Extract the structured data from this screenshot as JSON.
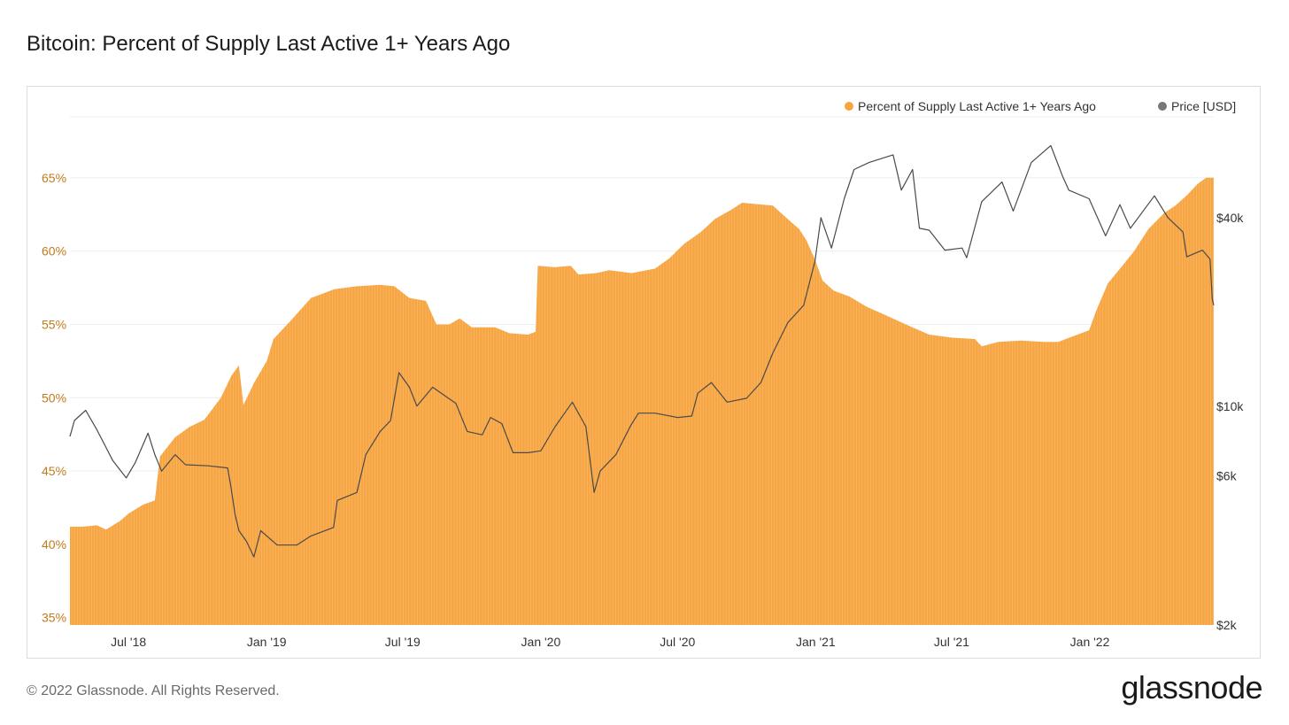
{
  "title": "Bitcoin: Percent of Supply Last Active 1+ Years Ago",
  "footer": "© 2022 Glassnode. All Rights Reserved.",
  "brand": "glassnode",
  "watermark": "glassnode",
  "colors": {
    "supply": "#f7a541",
    "price": "#4a4a4a",
    "left_axis_text": "#c07a1c",
    "grid": "#eeeeee"
  },
  "chart_data": {
    "type": "area",
    "title": "Bitcoin: Percent of Supply Last Active 1+ Years Ago",
    "legend": [
      "Percent of Supply Last Active 1+ Years Ago",
      "Price [USD]"
    ],
    "legend_position": "top-right",
    "x_range": [
      "2018-04-14",
      "2022-06-15"
    ],
    "x_ticks": [
      "Jul '18",
      "Jan '19",
      "Jul '19",
      "Jan '20",
      "Jul '20",
      "Jan '21",
      "Jul '21",
      "Jan '22"
    ],
    "x_tick_dates": [
      "2018-07-01",
      "2019-01-01",
      "2019-07-01",
      "2020-01-01",
      "2020-07-01",
      "2021-01-01",
      "2021-07-01",
      "2022-01-01"
    ],
    "y_left": {
      "label": "",
      "ticks": [
        "35%",
        "40%",
        "45%",
        "50%",
        "55%",
        "60%",
        "65%"
      ],
      "tick_values": [
        35,
        40,
        45,
        50,
        55,
        60,
        65
      ],
      "range": [
        34.5,
        70
      ]
    },
    "y_right": {
      "label": "",
      "scale": "log",
      "ticks": [
        "$2k",
        "$6k",
        "$10k",
        "$40k"
      ],
      "tick_values": [
        2000,
        6000,
        10000,
        40000
      ],
      "range": [
        2000,
        92000
      ]
    },
    "grid": true,
    "series": [
      {
        "name": "Percent of Supply Last Active 1+ Years Ago",
        "axis": "left",
        "points": [
          [
            "2018-04-14",
            41.2
          ],
          [
            "2018-05-01",
            41.2
          ],
          [
            "2018-05-20",
            41.3
          ],
          [
            "2018-06-01",
            41.0
          ],
          [
            "2018-06-20",
            41.6
          ],
          [
            "2018-07-01",
            42.1
          ],
          [
            "2018-07-20",
            42.7
          ],
          [
            "2018-08-05",
            43.0
          ],
          [
            "2018-08-12",
            46.0
          ],
          [
            "2018-09-01",
            47.3
          ],
          [
            "2018-09-20",
            48.0
          ],
          [
            "2018-10-10",
            48.5
          ],
          [
            "2018-11-01",
            50.0
          ],
          [
            "2018-11-15",
            51.5
          ],
          [
            "2018-11-25",
            52.2
          ],
          [
            "2018-12-01",
            49.5
          ],
          [
            "2018-12-15",
            51.0
          ],
          [
            "2019-01-01",
            52.5
          ],
          [
            "2019-01-10",
            54.0
          ],
          [
            "2019-02-01",
            55.2
          ],
          [
            "2019-03-01",
            56.8
          ],
          [
            "2019-04-01",
            57.4
          ],
          [
            "2019-05-01",
            57.6
          ],
          [
            "2019-06-01",
            57.7
          ],
          [
            "2019-06-20",
            57.6
          ],
          [
            "2019-07-10",
            56.8
          ],
          [
            "2019-08-01",
            56.6
          ],
          [
            "2019-08-15",
            55.0
          ],
          [
            "2019-09-01",
            55.0
          ],
          [
            "2019-09-15",
            55.4
          ],
          [
            "2019-10-01",
            54.8
          ],
          [
            "2019-11-01",
            54.8
          ],
          [
            "2019-11-20",
            54.4
          ],
          [
            "2019-12-15",
            54.3
          ],
          [
            "2019-12-25",
            54.5
          ],
          [
            "2019-12-28",
            59.0
          ],
          [
            "2020-01-20",
            58.9
          ],
          [
            "2020-02-10",
            59.0
          ],
          [
            "2020-02-20",
            58.4
          ],
          [
            "2020-03-15",
            58.5
          ],
          [
            "2020-04-01",
            58.7
          ],
          [
            "2020-05-01",
            58.5
          ],
          [
            "2020-06-01",
            58.8
          ],
          [
            "2020-06-20",
            59.5
          ],
          [
            "2020-07-10",
            60.5
          ],
          [
            "2020-08-01",
            61.3
          ],
          [
            "2020-08-20",
            62.2
          ],
          [
            "2020-09-10",
            62.8
          ],
          [
            "2020-09-25",
            63.3
          ],
          [
            "2020-10-15",
            63.2
          ],
          [
            "2020-11-05",
            63.1
          ],
          [
            "2020-11-20",
            62.4
          ],
          [
            "2020-12-10",
            61.5
          ],
          [
            "2020-12-20",
            60.7
          ],
          [
            "2021-01-01",
            59.3
          ],
          [
            "2021-01-10",
            58.0
          ],
          [
            "2021-01-25",
            57.3
          ],
          [
            "2021-02-15",
            56.9
          ],
          [
            "2021-03-10",
            56.2
          ],
          [
            "2021-04-01",
            55.7
          ],
          [
            "2021-05-01",
            55.0
          ],
          [
            "2021-06-01",
            54.3
          ],
          [
            "2021-07-01",
            54.1
          ],
          [
            "2021-08-01",
            54.0
          ],
          [
            "2021-08-10",
            53.5
          ],
          [
            "2021-09-01",
            53.8
          ],
          [
            "2021-10-01",
            53.9
          ],
          [
            "2021-11-01",
            53.8
          ],
          [
            "2021-11-20",
            53.8
          ],
          [
            "2021-12-10",
            54.2
          ],
          [
            "2021-12-31",
            54.6
          ],
          [
            "2022-01-10",
            56.0
          ],
          [
            "2022-01-25",
            57.8
          ],
          [
            "2022-02-15",
            59.1
          ],
          [
            "2022-03-01",
            60.0
          ],
          [
            "2022-03-20",
            61.5
          ],
          [
            "2022-04-10",
            62.6
          ],
          [
            "2022-04-25",
            63.1
          ],
          [
            "2022-05-10",
            63.8
          ],
          [
            "2022-05-25",
            64.6
          ],
          [
            "2022-06-05",
            65.0
          ],
          [
            "2022-06-15",
            65.0
          ]
        ]
      },
      {
        "name": "Price [USD]",
        "axis": "right",
        "points": [
          [
            "2018-04-14",
            8000
          ],
          [
            "2018-04-20",
            9000
          ],
          [
            "2018-05-05",
            9700
          ],
          [
            "2018-05-20",
            8400
          ],
          [
            "2018-06-10",
            6700
          ],
          [
            "2018-06-28",
            5900
          ],
          [
            "2018-07-10",
            6600
          ],
          [
            "2018-07-27",
            8200
          ],
          [
            "2018-08-05",
            7000
          ],
          [
            "2018-08-14",
            6200
          ],
          [
            "2018-09-01",
            7000
          ],
          [
            "2018-09-15",
            6500
          ],
          [
            "2018-10-15",
            6450
          ],
          [
            "2018-11-10",
            6350
          ],
          [
            "2018-11-14",
            5600
          ],
          [
            "2018-11-20",
            4500
          ],
          [
            "2018-11-25",
            4000
          ],
          [
            "2018-12-05",
            3700
          ],
          [
            "2018-12-15",
            3300
          ],
          [
            "2018-12-24",
            4000
          ],
          [
            "2019-01-15",
            3600
          ],
          [
            "2019-02-10",
            3600
          ],
          [
            "2019-03-01",
            3850
          ],
          [
            "2019-03-31",
            4100
          ],
          [
            "2019-04-05",
            5000
          ],
          [
            "2019-05-01",
            5300
          ],
          [
            "2019-05-13",
            7000
          ],
          [
            "2019-06-01",
            8300
          ],
          [
            "2019-06-15",
            9000
          ],
          [
            "2019-06-26",
            12800
          ],
          [
            "2019-07-10",
            11500
          ],
          [
            "2019-07-20",
            10000
          ],
          [
            "2019-08-10",
            11500
          ],
          [
            "2019-09-10",
            10200
          ],
          [
            "2019-09-25",
            8300
          ],
          [
            "2019-10-15",
            8100
          ],
          [
            "2019-10-26",
            9200
          ],
          [
            "2019-11-10",
            8800
          ],
          [
            "2019-11-25",
            7100
          ],
          [
            "2019-12-15",
            7100
          ],
          [
            "2020-01-01",
            7200
          ],
          [
            "2020-01-20",
            8600
          ],
          [
            "2020-02-12",
            10300
          ],
          [
            "2020-03-01",
            8600
          ],
          [
            "2020-03-12",
            5300
          ],
          [
            "2020-03-20",
            6200
          ],
          [
            "2020-04-10",
            7000
          ],
          [
            "2020-04-30",
            8700
          ],
          [
            "2020-05-10",
            9500
          ],
          [
            "2020-06-01",
            9500
          ],
          [
            "2020-07-01",
            9200
          ],
          [
            "2020-07-20",
            9300
          ],
          [
            "2020-07-28",
            11000
          ],
          [
            "2020-08-15",
            11900
          ],
          [
            "2020-09-05",
            10300
          ],
          [
            "2020-10-01",
            10600
          ],
          [
            "2020-10-20",
            11900
          ],
          [
            "2020-11-05",
            14800
          ],
          [
            "2020-11-25",
            18500
          ],
          [
            "2020-12-16",
            21000
          ],
          [
            "2020-12-31",
            29000
          ],
          [
            "2021-01-08",
            40000
          ],
          [
            "2021-01-22",
            32000
          ],
          [
            "2021-02-08",
            46000
          ],
          [
            "2021-02-21",
            57000
          ],
          [
            "2021-03-13",
            60000
          ],
          [
            "2021-04-14",
            63500
          ],
          [
            "2021-04-25",
            49000
          ],
          [
            "2021-05-10",
            57000
          ],
          [
            "2021-05-19",
            37000
          ],
          [
            "2021-06-01",
            36500
          ],
          [
            "2021-06-22",
            31500
          ],
          [
            "2021-07-15",
            32000
          ],
          [
            "2021-07-21",
            29800
          ],
          [
            "2021-08-10",
            45000
          ],
          [
            "2021-09-06",
            52000
          ],
          [
            "2021-09-21",
            42000
          ],
          [
            "2021-10-15",
            60000
          ],
          [
            "2021-11-10",
            68000
          ],
          [
            "2021-11-26",
            54000
          ],
          [
            "2021-12-04",
            49000
          ],
          [
            "2021-12-31",
            46000
          ],
          [
            "2022-01-22",
            35000
          ],
          [
            "2022-02-10",
            44000
          ],
          [
            "2022-02-24",
            37000
          ],
          [
            "2022-03-28",
            47000
          ],
          [
            "2022-04-15",
            40000
          ],
          [
            "2022-05-05",
            36000
          ],
          [
            "2022-05-10",
            30000
          ],
          [
            "2022-05-31",
            31500
          ],
          [
            "2022-06-10",
            29500
          ],
          [
            "2022-06-13",
            22000
          ],
          [
            "2022-06-15",
            21000
          ]
        ]
      }
    ]
  }
}
